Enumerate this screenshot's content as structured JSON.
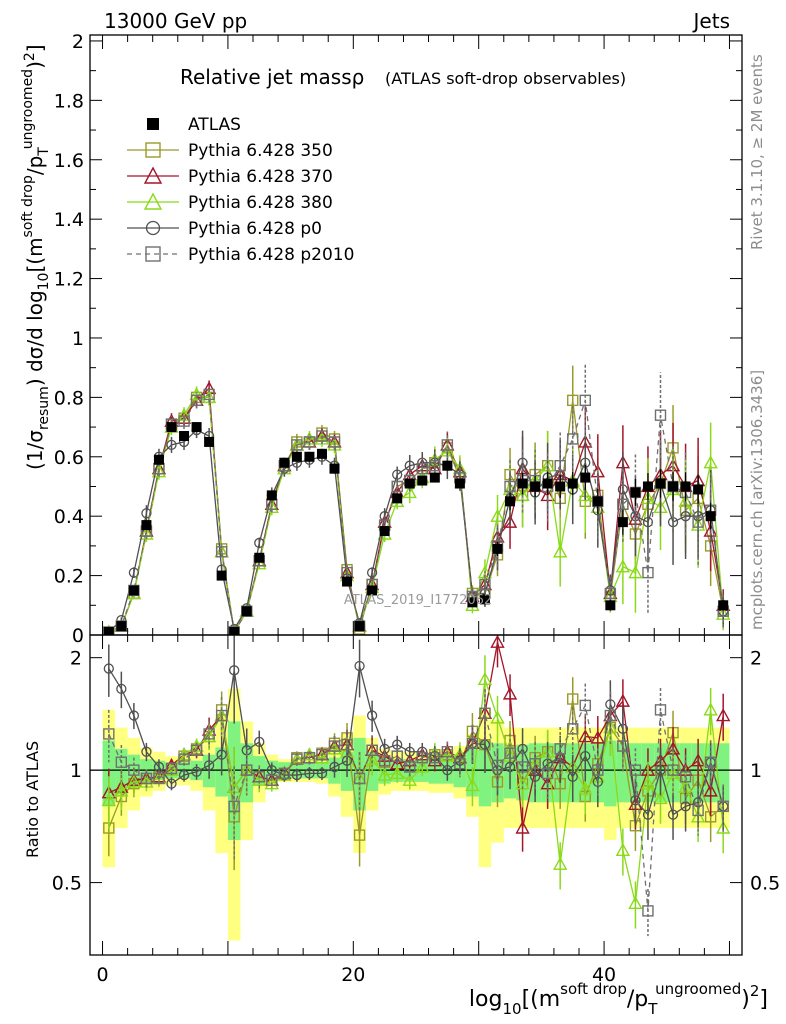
{
  "header": {
    "left": "13000 GeV pp",
    "right": "Jets"
  },
  "side_labels": {
    "rivet": "Rivet 3.1.10, ≥ 2M events",
    "mcplots": "mcplots.cern.ch [arXiv:1306.3436]"
  },
  "watermark": "ATLAS_2019_I1772062",
  "chart_data": {
    "type": "line",
    "title": "Relative jet massρ",
    "subtitle": "(ATLAS soft-drop observables)",
    "xlabel": "log10[(m^soft drop/pT^ungroomed)^2]",
    "ylabel": "(1/σresum) dσ/d log10[(m^soft drop/pT^ungroomed)^2]",
    "ratio_ylabel": "Ratio to ATLAS",
    "xlim": [
      -1,
      51
    ],
    "ylim": [
      0,
      2.02
    ],
    "ratio_ylim": [
      0.32,
      2.3
    ],
    "xticks": [
      0,
      20,
      40
    ],
    "yticks": [
      0,
      0.2,
      0.4,
      0.6,
      0.8,
      1,
      1.2,
      1.4,
      1.6,
      1.8,
      2
    ],
    "ratio_yticks": [
      0.5,
      1,
      2
    ],
    "grid": false,
    "legend_position": "top-left",
    "x": [
      0.5,
      1.5,
      2.5,
      3.5,
      4.5,
      5.5,
      6.5,
      7.5,
      8.5,
      9.5,
      10.5,
      11.5,
      12.5,
      13.5,
      14.5,
      15.5,
      16.5,
      17.5,
      18.5,
      19.5,
      20.5,
      21.5,
      22.5,
      23.5,
      24.5,
      25.5,
      26.5,
      27.5,
      28.5,
      29.5,
      30.5,
      31.5,
      32.5,
      33.5,
      34.5,
      35.5,
      36.5,
      37.5,
      38.5,
      39.5,
      40.5,
      41.5,
      42.5,
      43.5,
      44.5,
      45.5,
      46.5,
      47.5,
      48.5,
      49.5
    ],
    "series": [
      {
        "name": "ATLAS",
        "color": "#000000",
        "marker": "filled-square",
        "values": [
          0.01,
          0.03,
          0.15,
          0.37,
          0.59,
          0.7,
          0.67,
          0.7,
          0.65,
          0.2,
          0.01,
          0.08,
          0.26,
          0.47,
          0.58,
          0.6,
          0.6,
          0.61,
          0.56,
          0.18,
          0.03,
          0.15,
          0.35,
          0.46,
          0.51,
          0.52,
          0.53,
          0.57,
          0.51,
          0.11,
          0.12,
          0.29,
          0.45,
          0.51,
          0.5,
          0.51,
          0.5,
          0.51,
          0.53,
          0.45,
          0.1,
          0.38,
          0.48,
          0.5,
          0.51,
          0.5,
          0.5,
          0.49,
          0.4,
          0.1
        ],
        "errors": [
          0.005,
          0.01,
          0.02,
          0.03,
          0.03,
          0.03,
          0.03,
          0.03,
          0.03,
          0.02,
          0.005,
          0.01,
          0.02,
          0.03,
          0.03,
          0.03,
          0.03,
          0.03,
          0.03,
          0.02,
          0.01,
          0.02,
          0.03,
          0.03,
          0.04,
          0.04,
          0.05,
          0.05,
          0.05,
          0.03,
          0.05,
          0.08,
          0.1,
          0.12,
          0.12,
          0.13,
          0.13,
          0.13,
          0.14,
          0.14,
          0.06,
          0.14,
          0.15,
          0.15,
          0.16,
          0.16,
          0.16,
          0.16,
          0.15,
          0.06
        ]
      },
      {
        "name": "Pythia 6.428 350",
        "color": "#9a9a2a",
        "marker": "open-square",
        "dash": "solid",
        "values": [
          0.01,
          0.03,
          0.14,
          0.35,
          0.56,
          0.71,
          0.73,
          0.8,
          0.8,
          0.29,
          0.01,
          0.08,
          0.25,
          0.44,
          0.57,
          0.65,
          0.65,
          0.68,
          0.66,
          0.22,
          0.02,
          0.17,
          0.37,
          0.5,
          0.52,
          0.56,
          0.58,
          0.63,
          0.53,
          0.14,
          0.14,
          0.27,
          0.54,
          0.47,
          0.54,
          0.57,
          0.46,
          0.79,
          0.45,
          0.47,
          0.13,
          0.44,
          0.34,
          0.44,
          0.51,
          0.63,
          0.42,
          0.46,
          0.3,
          0.08
        ],
        "ratio": [
          0.7,
          0.85,
          0.92,
          0.95,
          0.96,
          1.01,
          1.09,
          1.14,
          1.23,
          1.45,
          0.75,
          1.0,
          0.96,
          0.94,
          0.98,
          1.08,
          1.08,
          1.11,
          1.18,
          1.22,
          0.67,
          1.13,
          1.05,
          1.09,
          1.02,
          1.08,
          1.1,
          1.1,
          1.04,
          1.27,
          1.17,
          0.93,
          1.2,
          0.92,
          1.08,
          1.12,
          0.92,
          1.55,
          0.85,
          1.04,
          1.3,
          1.16,
          0.71,
          0.88,
          1.0,
          1.26,
          0.84,
          0.94,
          0.75,
          0.8
        ]
      },
      {
        "name": "Pythia 6.428 370",
        "color": "#a3162a",
        "marker": "open-triangle",
        "dash": "solid",
        "values": [
          0.01,
          0.03,
          0.14,
          0.35,
          0.56,
          0.72,
          0.73,
          0.79,
          0.83,
          0.28,
          0.01,
          0.08,
          0.25,
          0.44,
          0.57,
          0.64,
          0.65,
          0.67,
          0.65,
          0.21,
          0.03,
          0.17,
          0.38,
          0.48,
          0.54,
          0.57,
          0.56,
          0.64,
          0.55,
          0.13,
          0.17,
          0.33,
          0.38,
          0.56,
          0.5,
          0.47,
          0.54,
          0.52,
          0.65,
          0.55,
          0.14,
          0.58,
          0.39,
          0.5,
          0.54,
          0.57,
          0.5,
          0.52,
          0.35,
          0.1
        ],
        "ratio": [
          0.87,
          0.9,
          0.94,
          0.95,
          0.96,
          1.03,
          1.1,
          1.13,
          1.28,
          1.4,
          0.9,
          1.0,
          0.96,
          0.94,
          0.98,
          1.07,
          1.08,
          1.1,
          1.16,
          1.17,
          0.95,
          1.13,
          1.09,
          1.04,
          1.06,
          1.1,
          1.06,
          1.12,
          1.08,
          1.18,
          1.42,
          2.2,
          1.6,
          0.7,
          1.0,
          0.92,
          1.08,
          1.02,
          1.23,
          1.22,
          1.4,
          1.53,
          0.81,
          1.0,
          1.06,
          1.14,
          1.0,
          1.06,
          0.88,
          1.4
        ]
      },
      {
        "name": "Pythia 6.428 380",
        "color": "#8ada1a",
        "marker": "open-triangle",
        "dash": "solid",
        "values": [
          0.01,
          0.03,
          0.14,
          0.34,
          0.55,
          0.7,
          0.74,
          0.81,
          0.8,
          0.28,
          0.01,
          0.08,
          0.24,
          0.43,
          0.56,
          0.64,
          0.66,
          0.66,
          0.64,
          0.2,
          0.03,
          0.16,
          0.34,
          0.45,
          0.48,
          0.53,
          0.59,
          0.62,
          0.56,
          0.1,
          0.21,
          0.4,
          0.49,
          0.47,
          0.52,
          0.57,
          0.28,
          0.52,
          0.47,
          0.43,
          0.13,
          0.23,
          0.21,
          0.46,
          0.43,
          0.49,
          0.45,
          0.37,
          0.58,
          0.07
        ],
        "ratio": [
          0.83,
          0.88,
          0.93,
          0.93,
          0.95,
          1.0,
          1.1,
          1.16,
          1.23,
          1.4,
          0.9,
          1.0,
          0.94,
          0.92,
          0.97,
          1.07,
          1.1,
          1.08,
          1.14,
          1.12,
          0.95,
          1.07,
          0.97,
          0.98,
          0.94,
          1.02,
          1.11,
          1.09,
          1.1,
          0.91,
          1.75,
          1.38,
          1.09,
          0.92,
          1.04,
          1.12,
          0.56,
          1.02,
          0.89,
          0.96,
          1.3,
          0.61,
          0.44,
          0.92,
          0.84,
          0.98,
          0.9,
          0.75,
          1.45,
          0.7
        ]
      },
      {
        "name": "Pythia 6.428 p0",
        "color": "#505050",
        "marker": "open-circle",
        "dash": "solid",
        "values": [
          0.01,
          0.05,
          0.21,
          0.41,
          0.6,
          0.64,
          0.65,
          0.69,
          0.67,
          0.22,
          0.02,
          0.09,
          0.31,
          0.47,
          0.56,
          0.58,
          0.59,
          0.6,
          0.57,
          0.19,
          0.04,
          0.21,
          0.4,
          0.54,
          0.57,
          0.58,
          0.58,
          0.57,
          0.54,
          0.13,
          0.14,
          0.29,
          0.46,
          0.58,
          0.48,
          0.53,
          0.54,
          0.49,
          0.58,
          0.42,
          0.15,
          0.49,
          0.4,
          0.38,
          0.51,
          0.38,
          0.4,
          0.4,
          0.42,
          0.08
        ],
        "ratio": [
          1.87,
          1.65,
          1.4,
          1.12,
          1.02,
          0.92,
          0.97,
          0.99,
          1.03,
          1.1,
          1.85,
          1.13,
          1.19,
          1.0,
          0.97,
          0.97,
          0.98,
          0.98,
          1.02,
          1.06,
          1.9,
          1.4,
          1.14,
          1.17,
          1.12,
          1.12,
          1.09,
          1.0,
          1.06,
          1.18,
          1.17,
          1.0,
          1.02,
          1.14,
          0.96,
          1.04,
          1.08,
          0.96,
          1.09,
          0.93,
          1.5,
          1.29,
          0.83,
          0.76,
          1.0,
          0.76,
          0.8,
          0.82,
          1.05,
          0.8
        ]
      },
      {
        "name": "Pythia 6.428 p2010",
        "color": "#707070",
        "marker": "open-square",
        "dash": "dashed",
        "values": [
          0.01,
          0.03,
          0.15,
          0.35,
          0.56,
          0.71,
          0.72,
          0.79,
          0.81,
          0.28,
          0.01,
          0.08,
          0.25,
          0.44,
          0.57,
          0.64,
          0.65,
          0.67,
          0.65,
          0.21,
          0.03,
          0.17,
          0.37,
          0.5,
          0.52,
          0.56,
          0.57,
          0.64,
          0.53,
          0.13,
          0.17,
          0.3,
          0.5,
          0.52,
          0.52,
          0.5,
          0.57,
          0.66,
          0.79,
          0.45,
          0.14,
          0.44,
          0.48,
          0.21,
          0.74,
          0.5,
          0.48,
          0.38,
          0.42,
          0.08
        ],
        "ratio": [
          1.25,
          1.05,
          1.0,
          0.95,
          0.95,
          1.01,
          1.07,
          1.13,
          1.25,
          1.4,
          0.8,
          1.0,
          0.96,
          0.94,
          0.98,
          1.07,
          1.08,
          1.1,
          1.16,
          1.17,
          0.95,
          1.13,
          1.06,
          1.09,
          1.02,
          1.08,
          1.08,
          1.12,
          1.04,
          1.18,
          1.42,
          1.03,
          1.11,
          1.02,
          1.04,
          0.98,
          1.14,
          1.29,
          1.49,
          1.0,
          1.4,
          1.16,
          1.0,
          0.42,
          1.45,
          1.0,
          0.96,
          0.78,
          1.05,
          0.8
        ]
      }
    ],
    "ratio_band": {
      "inner_color": "#7ff27f",
      "outer_color": "#ffff80",
      "inner_halfwidth": [
        0.2,
        0.14,
        0.1,
        0.07,
        0.06,
        0.05,
        0.05,
        0.06,
        0.1,
        0.15,
        0.35,
        0.18,
        0.09,
        0.06,
        0.05,
        0.05,
        0.05,
        0.05,
        0.08,
        0.12,
        0.22,
        0.12,
        0.08,
        0.07,
        0.07,
        0.07,
        0.08,
        0.08,
        0.1,
        0.15,
        0.2,
        0.18,
        0.16,
        0.17,
        0.18,
        0.18,
        0.18,
        0.18,
        0.18,
        0.18,
        0.2,
        0.18,
        0.18,
        0.18,
        0.18,
        0.18,
        0.18,
        0.18,
        0.18,
        0.18
      ],
      "outer_halfwidth": [
        0.45,
        0.3,
        0.22,
        0.15,
        0.12,
        0.09,
        0.09,
        0.12,
        0.22,
        0.4,
        0.65,
        0.35,
        0.18,
        0.1,
        0.07,
        0.07,
        0.07,
        0.08,
        0.15,
        0.25,
        0.4,
        0.22,
        0.14,
        0.12,
        0.12,
        0.12,
        0.13,
        0.13,
        0.16,
        0.25,
        0.45,
        0.36,
        0.3,
        0.3,
        0.3,
        0.3,
        0.3,
        0.3,
        0.3,
        0.3,
        0.35,
        0.3,
        0.3,
        0.3,
        0.3,
        0.3,
        0.3,
        0.3,
        0.3,
        0.3
      ]
    }
  }
}
